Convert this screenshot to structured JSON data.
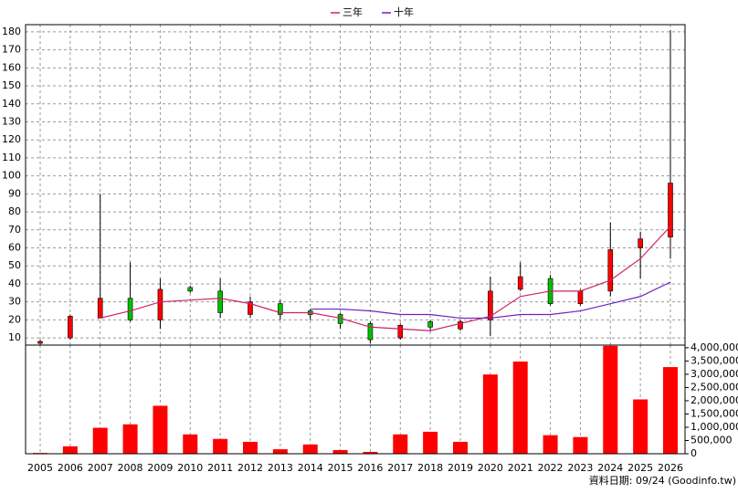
{
  "chart_data": [
    {
      "type": "candlestick",
      "categories": [
        "2005",
        "2006",
        "2007",
        "2008",
        "2009",
        "2010",
        "2011",
        "2012",
        "2013",
        "2014",
        "2015",
        "2016",
        "2017",
        "2018",
        "2019",
        "2020",
        "2021",
        "2022",
        "2023",
        "2024",
        "2025",
        "2026"
      ],
      "open": [
        7,
        10,
        21,
        32,
        20,
        38,
        36,
        23,
        29,
        25,
        23,
        18,
        10,
        19,
        15,
        20,
        37,
        43,
        29,
        36,
        60,
        66
      ],
      "high": [
        9,
        23,
        90,
        52,
        43,
        39,
        43,
        33,
        31,
        26,
        24,
        19,
        18,
        20,
        20,
        44,
        52,
        45,
        37,
        74,
        69,
        181
      ],
      "low": [
        6,
        9,
        21,
        19,
        15,
        35,
        21,
        21,
        20,
        20,
        15,
        7,
        9,
        14,
        14,
        11,
        36,
        28,
        28,
        33,
        43,
        54
      ],
      "close": [
        8,
        22,
        32,
        20,
        37,
        36,
        24,
        30,
        23,
        23,
        18,
        9,
        17,
        16,
        19,
        36,
        44,
        29,
        36,
        59,
        65,
        96
      ],
      "up_color": "#ff0000",
      "down_color": "#00c000",
      "series": [
        {
          "name": "三年",
          "color": "#d0206a",
          "values": [
            null,
            null,
            21,
            25,
            30,
            31,
            32,
            29,
            24,
            24,
            21,
            16,
            15,
            14,
            18,
            22,
            33,
            36,
            36,
            42,
            54,
            72
          ]
        },
        {
          "name": "十年",
          "color": "#7020c0",
          "values": [
            null,
            null,
            null,
            null,
            null,
            null,
            null,
            null,
            null,
            26,
            26,
            25,
            23,
            23,
            21,
            21,
            23,
            23,
            25,
            29,
            33,
            41
          ]
        }
      ],
      "ylim": [
        6,
        184
      ],
      "yticks": [
        10,
        20,
        30,
        40,
        50,
        60,
        70,
        80,
        90,
        100,
        110,
        120,
        130,
        140,
        150,
        160,
        170,
        180
      ],
      "grid": true
    },
    {
      "type": "bar",
      "values": [
        30000,
        280000,
        980000,
        1110000,
        1810000,
        730000,
        560000,
        450000,
        170000,
        350000,
        140000,
        70000,
        730000,
        830000,
        450000,
        2990000,
        3480000,
        700000,
        630000,
        4070000,
        2050000,
        3270000
      ],
      "color": "#ff0000",
      "ylim": [
        0,
        4100000
      ],
      "yticks": [
        0,
        {
          "value": 500000,
          "label": "500,000"
        },
        {
          "value": 1000000,
          "label": "1,000,000"
        },
        {
          "value": 1500000,
          "label": "1,500,000"
        },
        {
          "value": 2000000,
          "label": "2,000,000"
        },
        {
          "value": 2500000,
          "label": "2,500,000"
        },
        {
          "value": 3000000,
          "label": "3,000,000"
        },
        {
          "value": 3500000,
          "label": "3,500,000"
        },
        {
          "value": 4000000,
          "label": "4,000,000"
        }
      ],
      "grid": true,
      "source": "資料日期: 09/24  (Goodinfo.tw)"
    }
  ]
}
